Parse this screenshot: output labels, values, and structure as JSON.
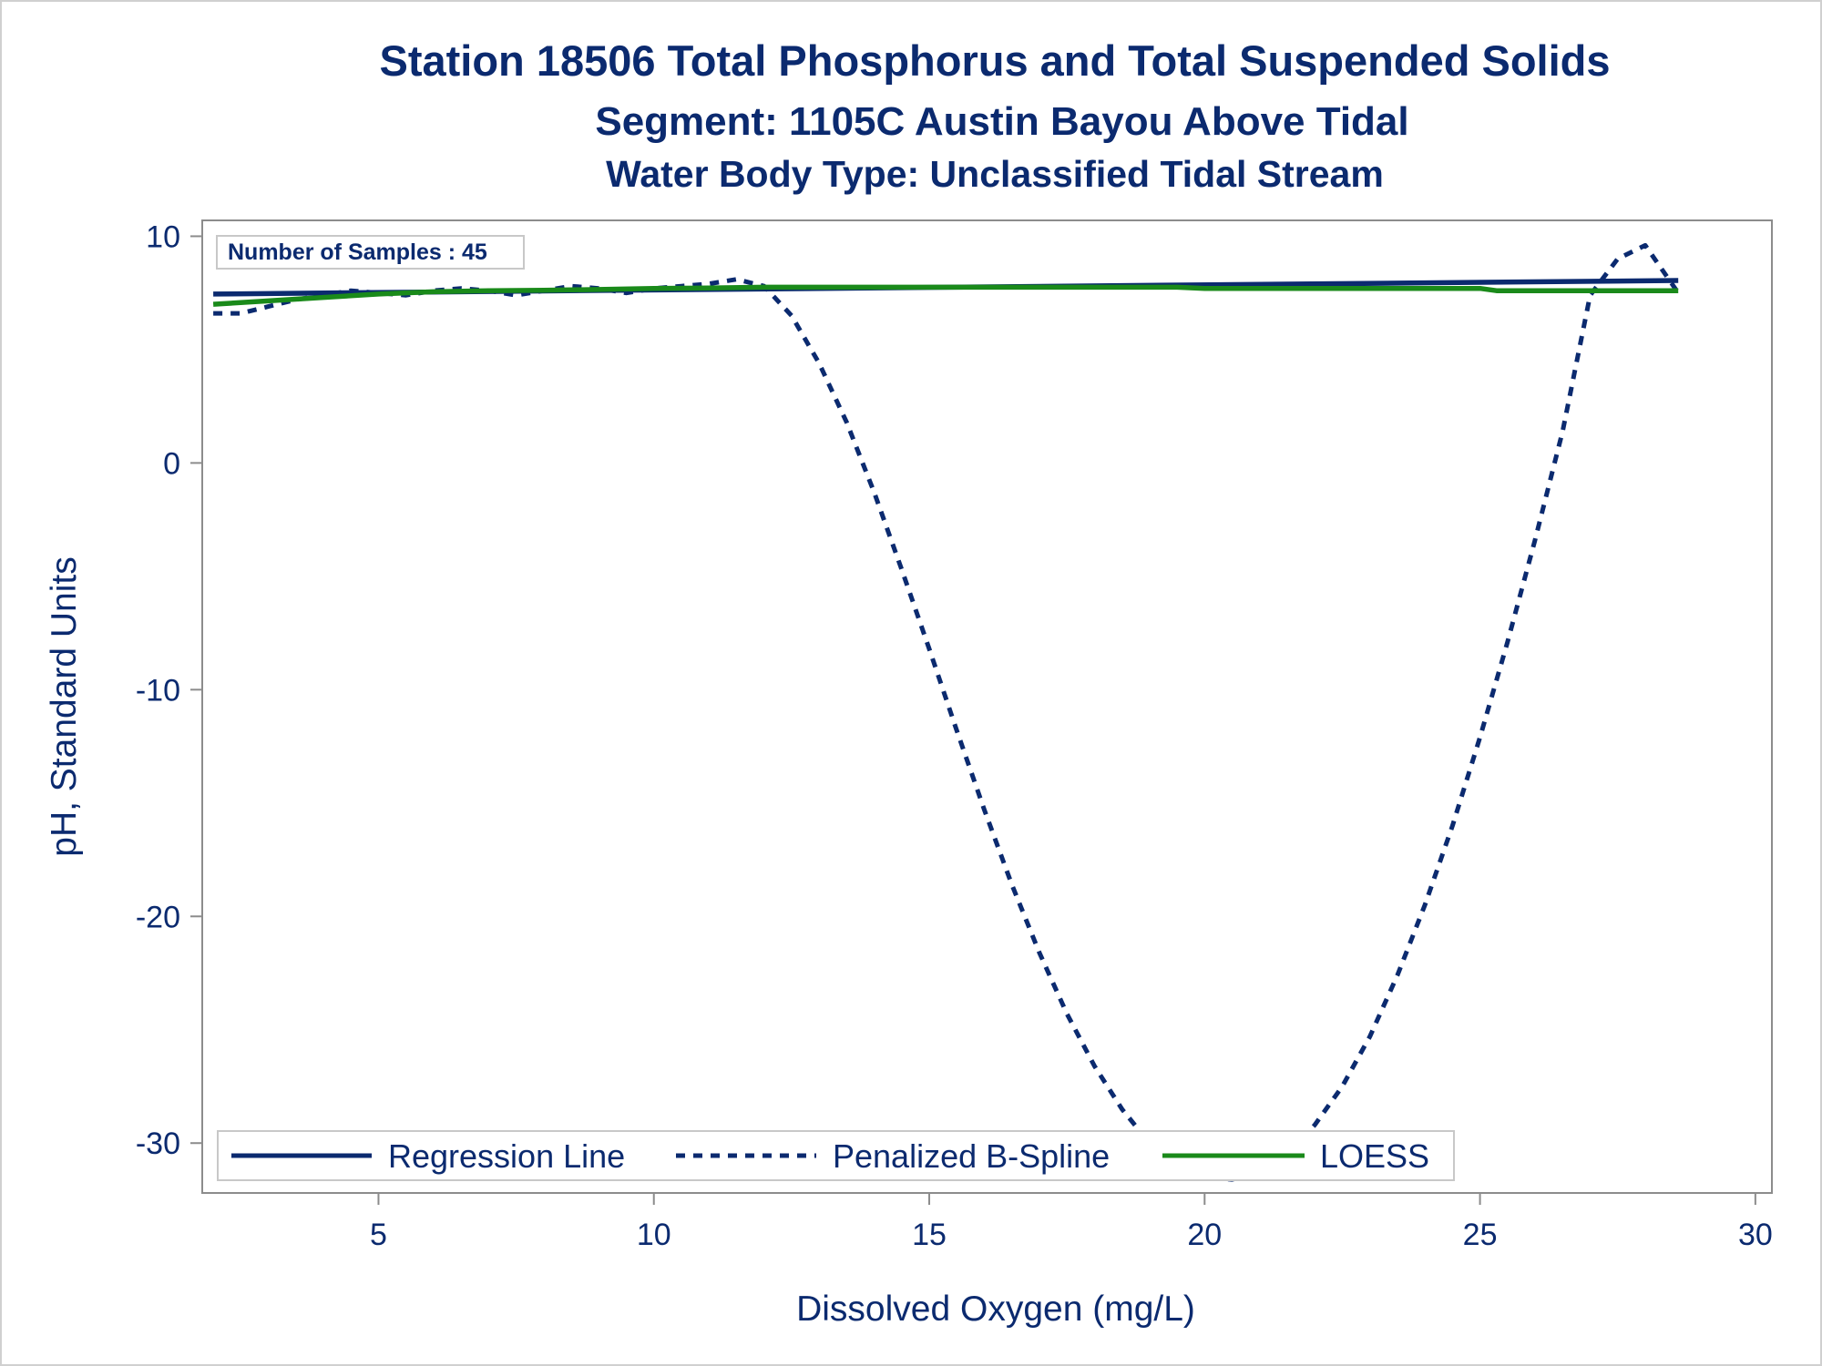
{
  "chart_data": {
    "type": "line",
    "title": "Station 18506  Total Phosphorus and Total Suspended Solids",
    "subtitle": "Segment: 1105C  Austin Bayou Above Tidal",
    "subtitle2": "Water Body Type: Unclassified Tidal Stream",
    "xlabel": "Dissolved Oxygen (mg/L)",
    "ylabel": "pH, Standard Units",
    "xlim": [
      1.8,
      30.3
    ],
    "ylim": [
      -32.2,
      10.7
    ],
    "x_ticks": [
      5,
      10,
      15,
      20,
      25,
      30
    ],
    "y_ticks": [
      10,
      0,
      -10,
      -20,
      -30
    ],
    "inset_label": "Number of Samples : 45",
    "legend_position": "bottom-left inside",
    "grid": false,
    "series": [
      {
        "name": "Regression Line",
        "style": "solid",
        "color": "#0b2a6f",
        "x": [
          2.0,
          28.6
        ],
        "y": [
          7.45,
          8.05
        ]
      },
      {
        "name": "Penalized B-Spline",
        "style": "dashed",
        "color": "#0b2a6f",
        "x": [
          2.0,
          2.5,
          3.0,
          3.5,
          4.0,
          4.5,
          5.0,
          5.5,
          6.0,
          6.5,
          7.0,
          7.5,
          8.0,
          8.5,
          9.0,
          9.5,
          10.0,
          10.5,
          11.0,
          11.5,
          12.0,
          12.5,
          13.0,
          13.5,
          14.0,
          14.5,
          15.0,
          15.5,
          16.0,
          16.5,
          17.0,
          17.5,
          18.0,
          18.5,
          19.0,
          19.5,
          20.0,
          20.5,
          21.0,
          21.5,
          22.0,
          22.5,
          23.0,
          23.5,
          24.0,
          24.5,
          25.0,
          25.5,
          26.0,
          26.5,
          27.0,
          27.5,
          28.0,
          28.6
        ],
        "y": [
          6.6,
          6.6,
          6.9,
          7.2,
          7.4,
          7.6,
          7.5,
          7.4,
          7.6,
          7.7,
          7.6,
          7.4,
          7.6,
          7.8,
          7.7,
          7.5,
          7.7,
          7.8,
          7.9,
          8.1,
          7.8,
          6.5,
          4.4,
          1.8,
          -1.3,
          -4.7,
          -8.2,
          -11.8,
          -15.3,
          -18.6,
          -21.6,
          -24.3,
          -26.6,
          -28.5,
          -30.0,
          -31.0,
          -31.5,
          -31.6,
          -31.3,
          -30.5,
          -29.2,
          -27.5,
          -25.3,
          -22.6,
          -19.5,
          -16.0,
          -12.1,
          -7.9,
          -3.4,
          1.4,
          7.4,
          9.0,
          9.6,
          7.5
        ]
      },
      {
        "name": "LOESS",
        "style": "solid",
        "color": "#1a8a1a",
        "x": [
          2.0,
          3.0,
          4.0,
          5.0,
          6.0,
          7.0,
          8.0,
          9.0,
          10.0,
          11.0,
          12.0,
          14.0,
          16.0,
          18.0,
          19.5,
          20.0,
          22.0,
          25.0,
          25.3,
          26.0,
          28.6
        ],
        "y": [
          7.0,
          7.15,
          7.3,
          7.45,
          7.55,
          7.6,
          7.62,
          7.65,
          7.7,
          7.72,
          7.75,
          7.75,
          7.75,
          7.75,
          7.75,
          7.7,
          7.7,
          7.7,
          7.6,
          7.6,
          7.6
        ]
      }
    ]
  }
}
